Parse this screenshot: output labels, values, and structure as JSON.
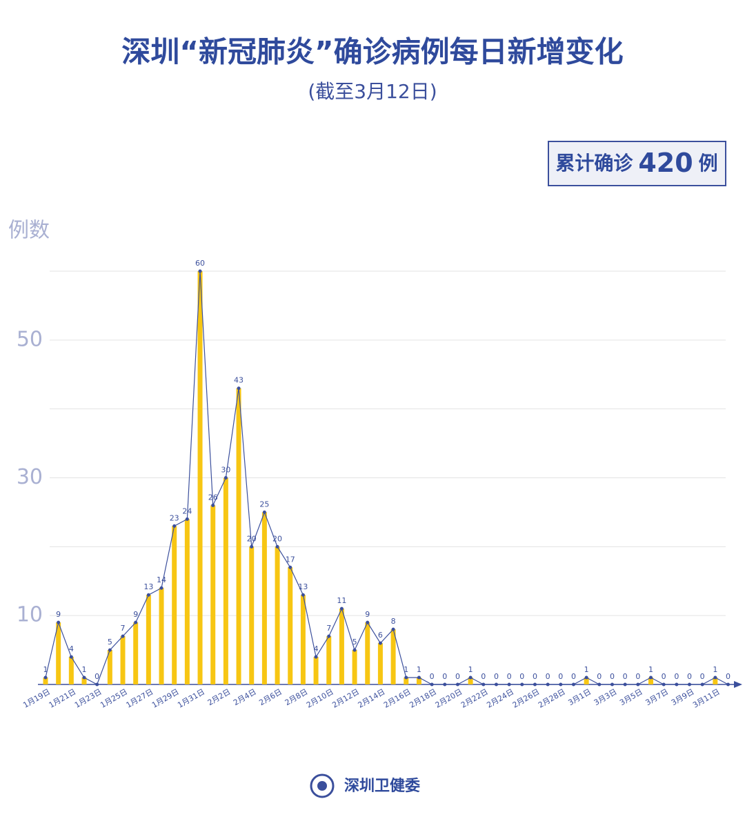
{
  "chart_data": {
    "type": "bar-line",
    "title": "深圳“新冠肺炎”确诊病例每日新增变化",
    "subtitle": "(截至3月12日)",
    "total_label": "累计确诊",
    "total_value": 420,
    "total_unit": "例",
    "y_label": "例数",
    "source": "深圳卫健委",
    "categories": [
      "1月19日",
      null,
      "1月21日",
      null,
      "1月23日",
      null,
      "1月25日",
      null,
      "1月27日",
      null,
      "1月29日",
      null,
      "1月31日",
      null,
      "2月2日",
      null,
      "2月4日",
      null,
      "2月6日",
      null,
      "2月8日",
      null,
      "2月10日",
      null,
      "2月12日",
      null,
      "2月14日",
      null,
      "2月16日",
      null,
      "2月18日",
      null,
      "2月20日",
      null,
      "2月22日",
      null,
      "2月24日",
      null,
      "2月26日",
      null,
      "2月28日",
      null,
      "3月1日",
      null,
      "3月3日",
      null,
      "3月5日",
      null,
      "3月7日",
      null,
      "3月9日",
      null,
      "3月11日",
      null
    ],
    "values": [
      1,
      9,
      4,
      1,
      0,
      5,
      7,
      9,
      13,
      14,
      23,
      24,
      60,
      26,
      30,
      43,
      20,
      25,
      20,
      17,
      13,
      4,
      7,
      11,
      5,
      9,
      6,
      8,
      1,
      1,
      0,
      0,
      0,
      1,
      0,
      0,
      0,
      0,
      0,
      0,
      0,
      0,
      1,
      0,
      0,
      0,
      0,
      1,
      0,
      0,
      0,
      0,
      1,
      0
    ],
    "bar_color": "#f7c613",
    "line_color": "#3b4f9c",
    "ylim": [
      0,
      60
    ],
    "yticks": [
      10,
      30,
      50
    ],
    "grid_lines": [
      20,
      40,
      60
    ],
    "grid": true
  }
}
